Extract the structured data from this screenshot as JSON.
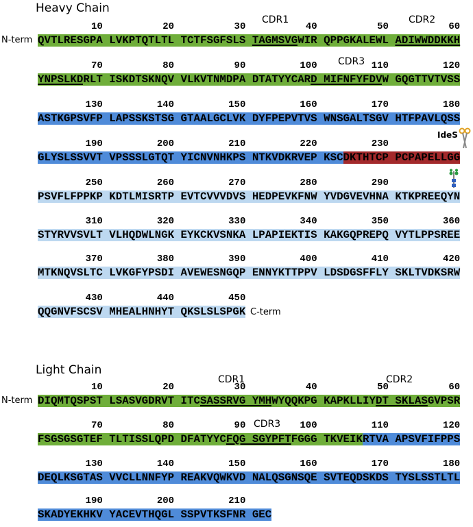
{
  "heavy_chain": {
    "title": "Heavy Chain",
    "n_term": "N-term",
    "c_term": "C-term",
    "annotations": [
      "CDR1",
      "CDR2",
      "CDR3",
      "IdeS"
    ],
    "rows": [
      {
        "numbers": [
          10,
          20,
          30,
          40,
          50,
          60
        ],
        "segments": [
          {
            "text": "QVTLRESGPA LVKPTQTLTL TCTFSGFSLS ",
            "color": "#6fae3a",
            "underline": false
          },
          {
            "text": "TAGMSVG",
            "color": "#6fae3a",
            "underline": true
          },
          {
            "text": "WIR QPPGKALEWL ",
            "color": "#6fae3a",
            "underline": false
          },
          {
            "text": "ADIWWDDKKH",
            "color": "#6fae3a",
            "underline": true
          }
        ]
      },
      {
        "numbers": [
          70,
          80,
          90,
          100,
          110,
          120
        ],
        "segments": [
          {
            "text": "YNPSLKD",
            "color": "#6fae3a",
            "underline": true
          },
          {
            "text": "RLT ISKDTSKNQV VLKVTNMDPA DTATYYCAR",
            "color": "#6fae3a",
            "underline": false
          },
          {
            "text": "D MIFNFYFDV",
            "color": "#6fae3a",
            "underline": true
          },
          {
            "text": "W GQGTTVTVSS",
            "color": "#6fae3a",
            "underline": false
          }
        ]
      },
      {
        "numbers": [
          130,
          140,
          150,
          160,
          170,
          180
        ],
        "segments": [
          {
            "text": "ASTKGPSVFP LAPSSKSTSG GTAALGCLVK DYFPEPVTVS WNSGALTSGV HTFPAVLQSS",
            "color": "#4f8bd9",
            "underline": false
          }
        ]
      },
      {
        "numbers": [
          190,
          200,
          210,
          220,
          230
        ],
        "segments": [
          {
            "text": "GLYSLSSVVT VPSSSLGTQT YICNVNHKPS NTKVDKRVEP KSC",
            "color": "#4f8bd9",
            "underline": false
          },
          {
            "text": "DKTHTCP PCPAPELLGG",
            "color": "#a3292b",
            "underline": false
          }
        ]
      },
      {
        "numbers": [
          250,
          260,
          270,
          280,
          290
        ],
        "segments": [
          {
            "text": "PSVFLFPPKP KDTLMISRTP EVTCVVVDVS HEDPEVKFNW YVDGVEVHNA KTKPREEQYN",
            "color": "#bdd8f0",
            "underline": false
          }
        ]
      },
      {
        "numbers": [
          310,
          320,
          330,
          340,
          350,
          360
        ],
        "segments": [
          {
            "text": "STYRVVSVLT VLHQDWLNGK EYKCKVSNKA LPAPIEKTIS KAKGQPREPQ VYTLPPSREE",
            "color": "#bdd8f0",
            "underline": false
          }
        ]
      },
      {
        "numbers": [
          370,
          380,
          390,
          400,
          410,
          420
        ],
        "segments": [
          {
            "text": "MTKNQVSLTC LVKGFYPSDI AVEWESNGQP ENNYKTTPPV LDSDGSFFLY SKLTVDKSRW",
            "color": "#bdd8f0",
            "underline": false
          }
        ]
      },
      {
        "numbers": [
          430,
          440,
          450
        ],
        "segments": [
          {
            "text": "QQGNVFSCSV MHEALHNHYT QKSLSLSPGK",
            "color": "#bdd8f0",
            "underline": false
          }
        ]
      }
    ]
  },
  "light_chain": {
    "title": "Light Chain",
    "n_term": "N-term",
    "annotations": [
      "CDR1",
      "CDR2",
      "CDR3"
    ],
    "rows": [
      {
        "numbers": [
          10,
          20,
          30,
          40,
          50,
          60
        ],
        "segments": [
          {
            "text": "DIQMTQSPST LSASVGDRVT ITC",
            "color": "#6fae3a",
            "underline": false
          },
          {
            "text": "SASSRVG YMH",
            "color": "#6fae3a",
            "underline": true
          },
          {
            "text": "WYQQKPG KAPKLLIY",
            "color": "#6fae3a",
            "underline": false
          },
          {
            "text": "DT SKLAS",
            "color": "#6fae3a",
            "underline": true
          },
          {
            "text": "GVPSR",
            "color": "#6fae3a",
            "underline": false
          }
        ]
      },
      {
        "numbers": [
          70,
          80,
          90,
          100,
          110,
          120
        ],
        "segments": [
          {
            "text": "FSGSGSGTEF TLTISSLQPD DFATYYC",
            "color": "#6fae3a",
            "underline": false
          },
          {
            "text": "FQG SGYPFT",
            "color": "#6fae3a",
            "underline": true
          },
          {
            "text": "FGGG TKVEIK",
            "color": "#6fae3a",
            "underline": false
          },
          {
            "text": "RTVA APSVFIFPPS",
            "color": "#4f8bd9",
            "underline": false
          }
        ]
      },
      {
        "numbers": [
          130,
          140,
          150,
          160,
          170,
          180
        ],
        "segments": [
          {
            "text": "DEQLKSGTAS VVCLLNNFYP REAKVQWKVD NALQSGNSQE SVTEQDSKDS TYSLSSTLTL",
            "color": "#4f8bd9",
            "underline": false
          }
        ]
      },
      {
        "numbers": [
          190,
          200,
          210
        ],
        "segments": [
          {
            "text": "SKADYEKHKV YACEVTHQGL SSPVTKSFNR GEC",
            "color": "#4f8bd9",
            "underline": false
          }
        ]
      }
    ]
  }
}
